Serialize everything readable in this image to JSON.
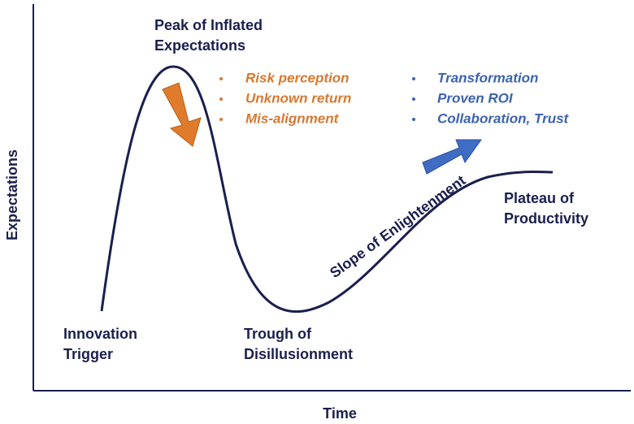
{
  "axes": {
    "y_label": "Expectations",
    "x_label": "Time"
  },
  "phases": [
    {
      "lines": [
        "Innovation",
        "Trigger"
      ]
    },
    {
      "lines": [
        "Peak of Inflated",
        "Expectations"
      ]
    },
    {
      "lines": [
        "Trough of",
        "Disillusionment"
      ]
    },
    {
      "lines": [
        "Slope of Enlightenment"
      ]
    },
    {
      "lines": [
        "Plateau of",
        "Productivity"
      ]
    }
  ],
  "barriers": [
    "Risk perception",
    "Unknown return",
    "Mis-alignment"
  ],
  "drivers": [
    "Transformation",
    "Proven ROI",
    "Collaboration, Trust"
  ]
}
